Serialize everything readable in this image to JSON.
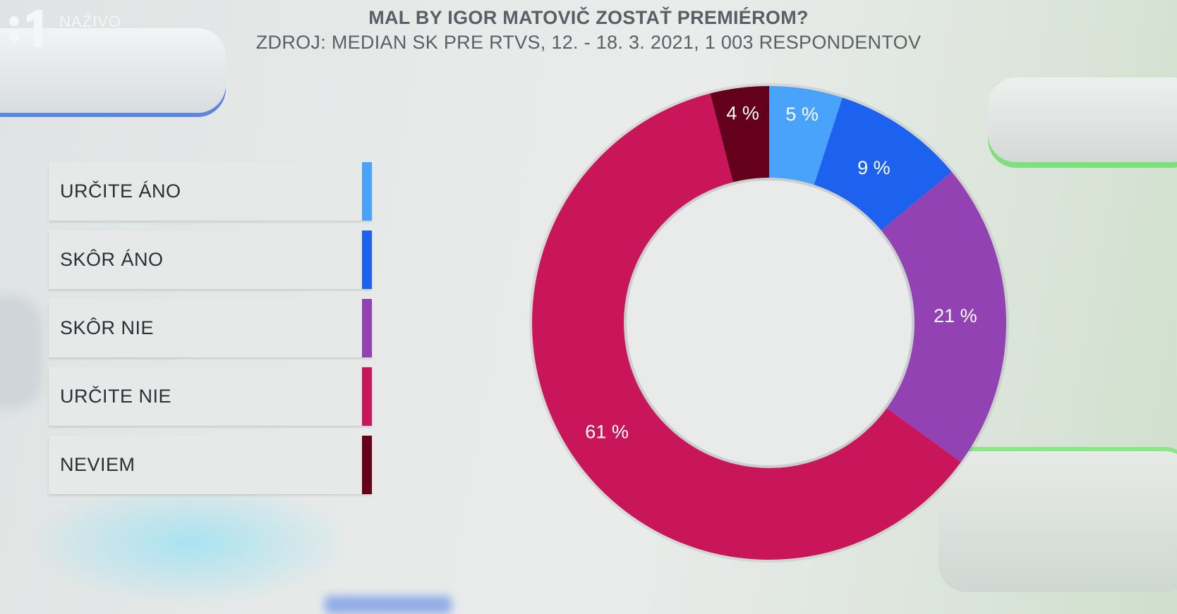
{
  "channel": {
    "logo": "jednotka-1-logo",
    "live_label": "NAŽIVO"
  },
  "chart_data": {
    "type": "pie",
    "title": "MAL BY IGOR MATOVIČ ZOSTAŤ PREMIÉROM?",
    "subtitle": "ZDROJ: MEDIAN SK PRE RTVS, 12. - 18. 3. 2021, 1 003 RESPONDENTOV",
    "legend_placement": "left",
    "categories": [
      "URČITE ÁNO",
      "SKÔR ÁNO",
      "SKÔR NIE",
      "URČITE NIE",
      "NEVIEM"
    ],
    "values": [
      5,
      9,
      21,
      61,
      4
    ],
    "data_labels": [
      "5 %",
      "9 %",
      "21 %",
      "61 %",
      "4 %"
    ],
    "colors": [
      "#4aa3fb",
      "#1c62ee",
      "#9242b3",
      "#c91559",
      "#64001c"
    ]
  }
}
